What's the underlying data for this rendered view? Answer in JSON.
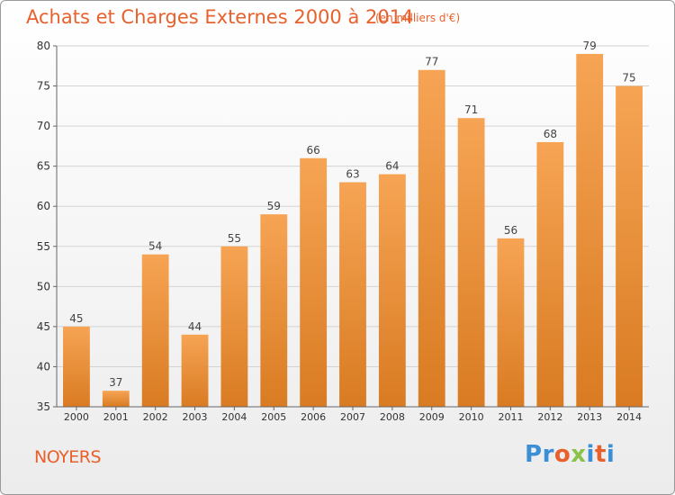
{
  "title": "Achats et Charges Externes 2000 à 2014",
  "subtitle": "(en milliers d'€)",
  "commune": "NOYERS",
  "logo": {
    "letters": [
      "P",
      "r",
      "o",
      "x",
      "i",
      "t",
      "i"
    ],
    "colors": [
      "#3a8fd6",
      "#3a8fd6",
      "#e8612c",
      "#8bc34a",
      "#3a8fd6",
      "#e8612c",
      "#3a8fd6"
    ]
  },
  "colors": {
    "bar_light": "#f6a454",
    "bar_dark": "#d97b22",
    "accent": "#e8612c"
  },
  "chart_data": {
    "type": "bar",
    "categories": [
      "2000",
      "2001",
      "2002",
      "2003",
      "2004",
      "2005",
      "2006",
      "2007",
      "2008",
      "2009",
      "2010",
      "2011",
      "2012",
      "2013",
      "2014"
    ],
    "values": [
      45,
      37,
      54,
      44,
      55,
      59,
      66,
      63,
      64,
      77,
      71,
      56,
      68,
      79,
      75
    ],
    "title": "Achats et Charges Externes 2000 à 2014",
    "xlabel": "",
    "ylabel": "",
    "ylim": [
      35,
      80
    ],
    "yticks": [
      35,
      40,
      45,
      50,
      55,
      60,
      65,
      70,
      75,
      80
    ],
    "grid": true
  }
}
